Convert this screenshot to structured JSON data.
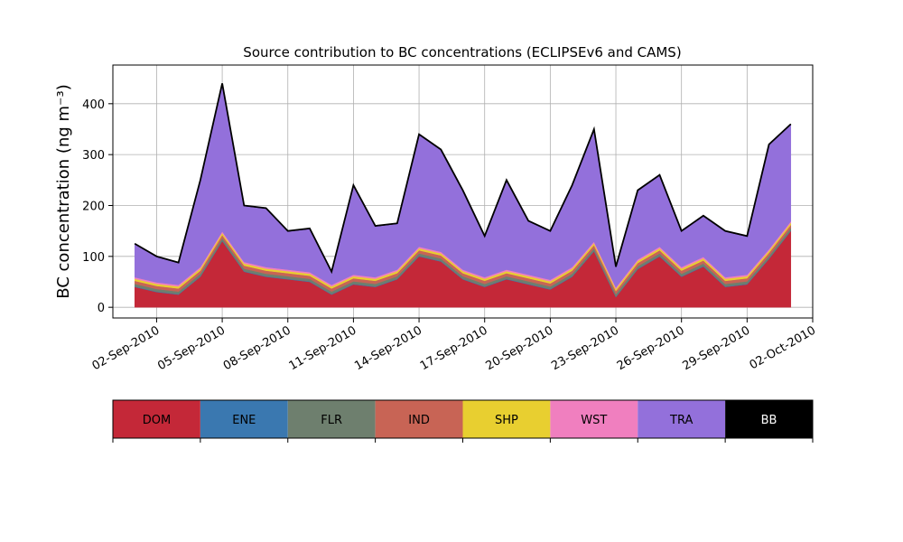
{
  "chart_data": {
    "type": "stacked_area",
    "title": "Source contribution to BC concentrations (ECLIPSEv6 and CAMS)",
    "y_label": "BC concentration (ng m⁻³)",
    "x": [
      "2010-09-01",
      "2010-09-02",
      "2010-09-03",
      "2010-09-04",
      "2010-09-05",
      "2010-09-06",
      "2010-09-07",
      "2010-09-08",
      "2010-09-09",
      "2010-09-10",
      "2010-09-11",
      "2010-09-12",
      "2010-09-13",
      "2010-09-14",
      "2010-09-15",
      "2010-09-16",
      "2010-09-17",
      "2010-09-18",
      "2010-09-19",
      "2010-09-20",
      "2010-09-21",
      "2010-09-22",
      "2010-09-23",
      "2010-09-24",
      "2010-09-25",
      "2010-09-26",
      "2010-09-27",
      "2010-09-28",
      "2010-09-29",
      "2010-09-30",
      "2010-10-01"
    ],
    "series": [
      {
        "name": "DOM",
        "color": "#c42838",
        "values": [
          40,
          30,
          25,
          60,
          130,
          70,
          60,
          55,
          50,
          25,
          45,
          40,
          55,
          100,
          90,
          55,
          40,
          55,
          45,
          35,
          60,
          110,
          20,
          75,
          100,
          60,
          80,
          40,
          45,
          95,
          150
        ]
      },
      {
        "name": "ENE",
        "color": "#3a78b0",
        "values": [
          1,
          1,
          1,
          1,
          1,
          1,
          1,
          1,
          1,
          1,
          1,
          1,
          1,
          1,
          1,
          1,
          1,
          1,
          1,
          1,
          1,
          1,
          1,
          1,
          1,
          1,
          1,
          1,
          1,
          1,
          1
        ]
      },
      {
        "name": "FLR",
        "color": "#6e7f6e",
        "values": [
          5,
          5,
          5,
          5,
          5,
          5,
          5,
          5,
          5,
          5,
          5,
          5,
          5,
          5,
          5,
          5,
          5,
          5,
          5,
          5,
          5,
          5,
          5,
          5,
          5,
          5,
          5,
          5,
          5,
          5,
          5
        ]
      },
      {
        "name": "IND",
        "color": "#c86455",
        "values": [
          6,
          6,
          6,
          6,
          6,
          6,
          6,
          6,
          6,
          6,
          6,
          6,
          6,
          6,
          6,
          6,
          6,
          6,
          6,
          6,
          6,
          6,
          6,
          6,
          6,
          6,
          6,
          6,
          6,
          6,
          6
        ]
      },
      {
        "name": "SHP",
        "color": "#e8cf30",
        "values": [
          4,
          4,
          4,
          4,
          4,
          4,
          4,
          4,
          4,
          4,
          4,
          4,
          4,
          4,
          4,
          4,
          4,
          4,
          4,
          4,
          4,
          4,
          4,
          4,
          4,
          4,
          4,
          4,
          4,
          4,
          4
        ]
      },
      {
        "name": "WST",
        "color": "#f07fbf",
        "values": [
          3,
          3,
          3,
          3,
          3,
          3,
          3,
          3,
          3,
          3,
          3,
          3,
          3,
          3,
          3,
          3,
          3,
          3,
          3,
          3,
          3,
          3,
          3,
          3,
          3,
          3,
          3,
          3,
          3,
          3,
          3
        ]
      },
      {
        "name": "TRA",
        "color": "#9370db",
        "values": [
          65,
          50,
          43,
          170,
          290,
          110,
          115,
          75,
          85,
          25,
          175,
          100,
          90,
          220,
          200,
          155,
          80,
          175,
          105,
          95,
          160,
          220,
          40,
          135,
          140,
          70,
          80,
          90,
          75,
          205,
          190
        ]
      },
      {
        "name": "BB",
        "color": "#000000",
        "values": [
          1,
          1,
          1,
          1,
          1,
          1,
          1,
          1,
          1,
          1,
          1,
          1,
          1,
          1,
          1,
          1,
          1,
          1,
          1,
          1,
          1,
          1,
          1,
          1,
          1,
          1,
          1,
          1,
          1,
          1,
          1
        ]
      }
    ],
    "xlim": [
      "2010-08-31",
      "2010-10-02"
    ],
    "xticks": [
      {
        "value": "2010-09-02",
        "label": "02-Sep-2010"
      },
      {
        "value": "2010-09-05",
        "label": "05-Sep-2010"
      },
      {
        "value": "2010-09-08",
        "label": "08-Sep-2010"
      },
      {
        "value": "2010-09-11",
        "label": "11-Sep-2010"
      },
      {
        "value": "2010-09-14",
        "label": "14-Sep-2010"
      },
      {
        "value": "2010-09-17",
        "label": "17-Sep-2010"
      },
      {
        "value": "2010-09-20",
        "label": "20-Sep-2010"
      },
      {
        "value": "2010-09-23",
        "label": "23-Sep-2010"
      },
      {
        "value": "2010-09-26",
        "label": "26-Sep-2010"
      },
      {
        "value": "2010-09-29",
        "label": "29-Sep-2010"
      },
      {
        "value": "2010-10-02",
        "label": "02-Oct-2010"
      }
    ],
    "ylim": [
      -21,
      476
    ],
    "yticks": [
      0,
      100,
      200,
      300,
      400
    ],
    "grid": true
  }
}
